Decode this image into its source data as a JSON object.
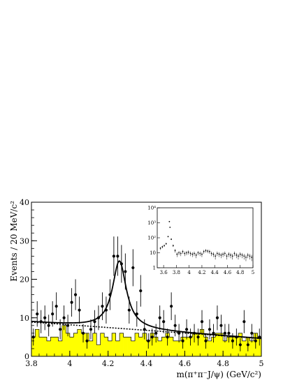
{
  "chart_data": {
    "type": "bar",
    "xlabel": "m(π⁺π⁻J/ψ) (GeV/c²)",
    "ylabel": "Events / 20 MeV/c²",
    "xlim": [
      3.8,
      5.0
    ],
    "ylim": [
      0,
      40
    ],
    "x_ticks": [
      "3.8",
      "4",
      "4.2",
      "4.4",
      "4.6",
      "4.8",
      "5"
    ],
    "y_ticks": [
      "0",
      "10",
      "20",
      "30",
      "40"
    ],
    "bin_edges_start": 3.8,
    "bin_width": 0.02,
    "series": [
      {
        "kind": "background-histogram",
        "color": "#ffff00",
        "values": [
          5,
          7,
          5,
          5,
          4,
          5,
          5,
          4,
          8,
          6,
          5,
          6,
          7,
          6,
          6,
          4,
          6,
          3,
          6,
          5,
          4,
          6,
          4,
          6,
          5,
          5,
          4,
          6,
          5,
          6,
          4,
          6,
          5,
          4,
          5,
          6,
          5,
          4,
          4,
          5,
          5,
          5,
          6,
          6,
          7,
          5,
          4,
          5,
          6,
          6,
          4,
          5,
          5,
          5,
          6,
          4,
          5,
          4,
          6,
          5
        ]
      },
      {
        "kind": "data-points",
        "x": [
          3.81,
          3.83,
          3.85,
          3.87,
          3.89,
          3.91,
          3.93,
          3.95,
          3.97,
          3.99,
          4.01,
          4.03,
          4.05,
          4.07,
          4.09,
          4.11,
          4.13,
          4.15,
          4.17,
          4.19,
          4.21,
          4.23,
          4.25,
          4.27,
          4.29,
          4.31,
          4.33,
          4.35,
          4.37,
          4.39,
          4.41,
          4.43,
          4.45,
          4.47,
          4.49,
          4.51,
          4.53,
          4.55,
          4.57,
          4.59,
          4.61,
          4.63,
          4.65,
          4.67,
          4.69,
          4.71,
          4.73,
          4.75,
          4.77,
          4.79,
          4.81,
          4.83,
          4.85,
          4.87,
          4.89,
          4.91,
          4.93,
          4.95,
          4.97,
          4.99
        ],
        "y": [
          5,
          11,
          9,
          10,
          8,
          11,
          13,
          7,
          10,
          8,
          14,
          16,
          12,
          6,
          4,
          7,
          9,
          10,
          13,
          12,
          16,
          26,
          26,
          24,
          22,
          12,
          23,
          11,
          17,
          7,
          4,
          5,
          6,
          10,
          9,
          5,
          13,
          8,
          6,
          4,
          7,
          5,
          6,
          5,
          9,
          4,
          7,
          6,
          10,
          8,
          6,
          6,
          4,
          5,
          3,
          9,
          3,
          6,
          4,
          5
        ],
        "err": [
          2.2,
          3.3,
          3.0,
          3.2,
          2.8,
          3.3,
          3.6,
          2.6,
          3.2,
          2.8,
          3.7,
          4.0,
          3.5,
          2.4,
          2.0,
          2.6,
          3.0,
          3.2,
          3.6,
          3.5,
          4.0,
          5.1,
          5.1,
          4.9,
          4.7,
          3.5,
          4.8,
          3.3,
          4.1,
          2.6,
          2.0,
          2.2,
          2.4,
          3.2,
          3.0,
          2.2,
          3.6,
          2.8,
          2.4,
          2.0,
          2.6,
          2.2,
          2.4,
          2.2,
          3.0,
          2.0,
          2.6,
          2.4,
          3.2,
          2.8,
          2.4,
          2.4,
          2.0,
          2.2,
          1.7,
          3.0,
          1.7,
          2.4,
          2.0,
          2.2
        ]
      },
      {
        "kind": "total-fit",
        "style": "solid",
        "peak_mass": 4.259,
        "peak_width": 0.088,
        "peak_height": 17.5
      },
      {
        "kind": "background-fit",
        "style": "dotted",
        "slope_start": 8.9,
        "slope_end": 4.6
      }
    ],
    "inset": {
      "type": "scatter",
      "log_y": true,
      "xlim": [
        3.5,
        5.0
      ],
      "ylim": [
        1,
        10000
      ],
      "x_ticks": [
        "3.6",
        "3.8",
        "4",
        "4.2",
        "4.4",
        "4.6",
        "4.8",
        "5"
      ],
      "y_ticks": [
        "1",
        "10",
        "10²",
        "10³",
        "10⁴"
      ],
      "x": [
        3.55,
        3.58,
        3.61,
        3.64,
        3.67,
        3.69,
        3.7,
        3.72,
        3.75,
        3.78,
        3.81,
        3.84,
        3.87,
        3.9,
        3.93,
        3.96,
        3.99,
        4.02,
        4.05,
        4.08,
        4.11,
        4.14,
        4.17,
        4.2,
        4.23,
        4.26,
        4.29,
        4.32,
        4.35,
        4.38,
        4.41,
        4.44,
        4.47,
        4.5,
        4.53,
        4.56,
        4.59,
        4.62,
        4.65,
        4.68,
        4.71,
        4.74,
        4.77,
        4.8,
        4.83,
        4.86,
        4.89,
        4.92,
        4.95,
        4.98
      ],
      "y": [
        20,
        25,
        30,
        40,
        120,
        1200,
        500,
        80,
        30,
        14,
        8,
        10,
        9,
        12,
        9,
        10,
        11,
        9,
        8,
        9,
        7,
        10,
        9,
        8,
        12,
        14,
        13,
        12,
        9,
        8,
        6,
        9,
        8,
        7,
        8,
        9,
        6,
        8,
        7,
        6,
        9,
        7,
        6,
        8,
        7,
        6,
        5,
        7,
        6,
        5
      ]
    }
  }
}
